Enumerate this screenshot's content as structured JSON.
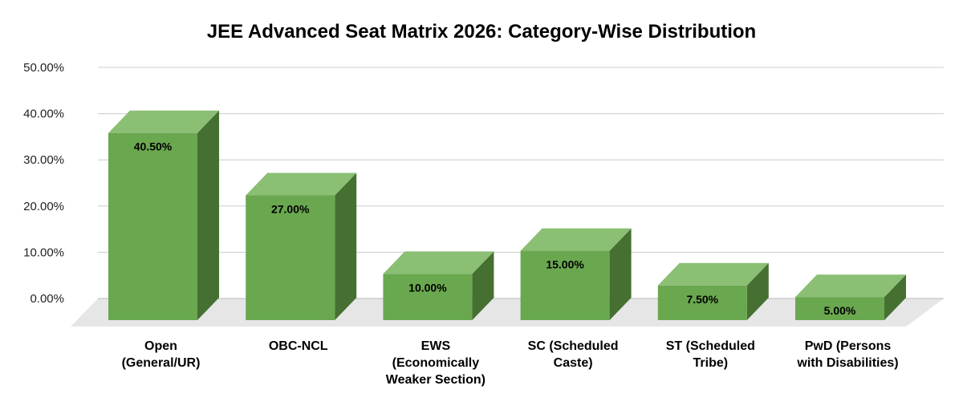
{
  "chart_data": {
    "type": "bar",
    "title": "JEE Advanced Seat Matrix 2026: Category-Wise Distribution",
    "categories": [
      [
        "Open",
        "(General/UR)"
      ],
      [
        "OBC-NCL"
      ],
      [
        "EWS",
        "(Economically",
        "Weaker Section)"
      ],
      [
        "SC (Scheduled",
        "Caste)"
      ],
      [
        "ST (Scheduled",
        "Tribe)"
      ],
      [
        "PwD (Persons",
        "with Disabilities)"
      ]
    ],
    "values": [
      40.5,
      27.0,
      10.0,
      15.0,
      7.5,
      5.0
    ],
    "value_labels": [
      "40.50%",
      "27.00%",
      "10.00%",
      "15.00%",
      "7.50%",
      "5.00%"
    ],
    "y_ticks": [
      "0.00%",
      "10.00%",
      "20.00%",
      "30.00%",
      "40.00%",
      "50.00%"
    ],
    "ylim": [
      0,
      50
    ],
    "grid": true,
    "style": "3d-column",
    "colors": {
      "front": "#6aa84f",
      "top": "#8bbf74",
      "side": "#457032",
      "floor": "#e6e6e6",
      "grid": "#cccccc"
    }
  }
}
